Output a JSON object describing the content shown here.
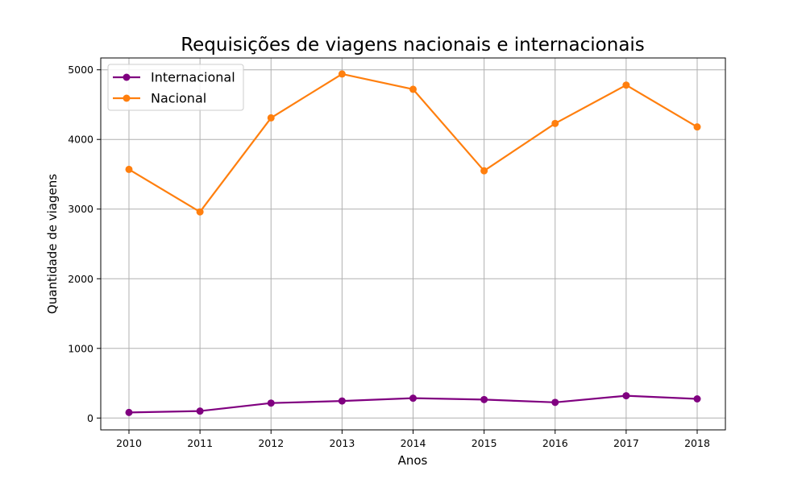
{
  "chart_data": {
    "type": "line",
    "title": "Requisições de viagens nacionais e internacionais",
    "xlabel": "Anos",
    "ylabel": "Quantidade de viagens",
    "categories": [
      "2010",
      "2011",
      "2012",
      "2013",
      "2014",
      "2015",
      "2016",
      "2017",
      "2018"
    ],
    "y_ticks": [
      "0",
      "1000",
      "2000",
      "3000",
      "4000",
      "5000"
    ],
    "ylim": [
      -170,
      5170
    ],
    "grid": true,
    "legend_position": "upper-left",
    "series": [
      {
        "name": "Internacional",
        "color": "#800080",
        "values": [
          80,
          100,
          215,
          245,
          285,
          265,
          225,
          320,
          275
        ]
      },
      {
        "name": "Nacional",
        "color": "#ff7f0e",
        "values": [
          3570,
          2960,
          4310,
          4940,
          4720,
          3550,
          4230,
          4780,
          4180
        ]
      }
    ]
  }
}
